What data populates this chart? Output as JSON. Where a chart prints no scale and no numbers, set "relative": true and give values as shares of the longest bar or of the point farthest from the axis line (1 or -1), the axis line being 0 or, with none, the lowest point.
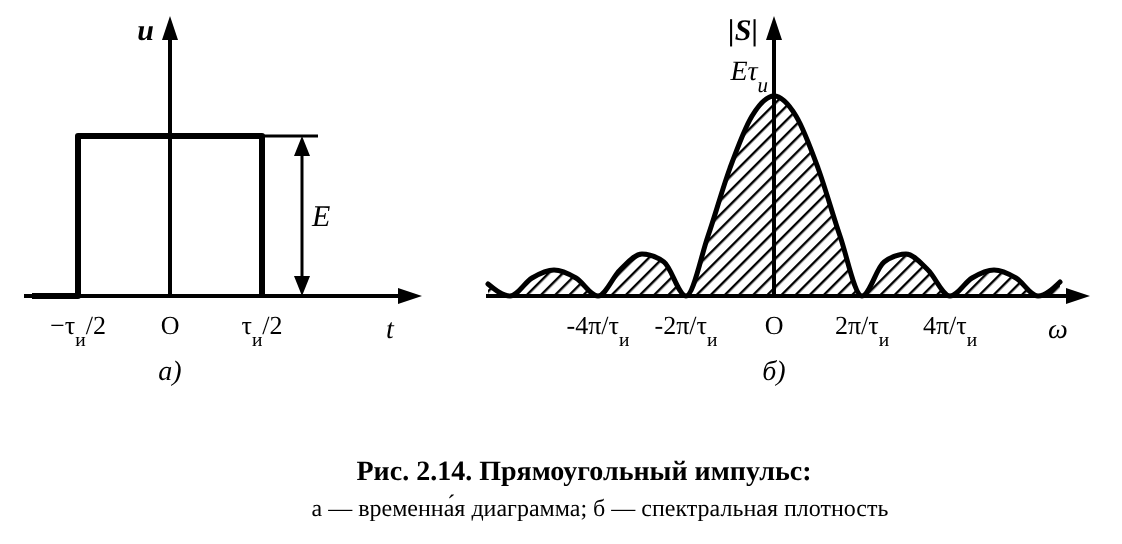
{
  "chart_data": [
    {
      "type": "step",
      "xlabel": "t",
      "ylabel": "u",
      "relative": true,
      "categories": [
        null,
        "−τ$_{и}$/2",
        null,
        "O",
        null,
        "τ$_{и}$/2",
        null,
        null,
        null
      ],
      "series": [
        {
          "color": "#000000",
          "values": [
            0,
            1,
            1,
            1,
            1,
            0,
            null,
            null,
            null
          ]
        }
      ],
      "annotations": [
        {
          "text": "E",
          "x": "τ$_{и}$/2",
          "y": 1
        },
        "а)"
      ]
    },
    {
      "type": "area",
      "xlabel": "ω",
      "ylabel": "|S|",
      "relative": true,
      "categories": [
        null,
        null,
        null,
        null,
        null,
        "-4π/τ$_{и}$",
        null,
        null,
        null,
        "-2π/τ$_{и}$",
        null,
        null,
        null,
        "O",
        null,
        null,
        null,
        "2π/τ$_{и}$",
        null,
        null,
        null,
        "4π/τ$_{и}$",
        null,
        null,
        null,
        null,
        null
      ],
      "series": [
        {
          "color": "#000000",
          "values": [
            0.06,
            0,
            0.09,
            0.13,
            0.09,
            0,
            0.13,
            0.21,
            0.17,
            0,
            0.3,
            0.64,
            0.9,
            1,
            0.9,
            0.64,
            0.3,
            0,
            0.17,
            0.21,
            0.13,
            0,
            0.09,
            0.13,
            0.09,
            0,
            0.07
          ]
        }
      ],
      "annotations": [
        {
          "text": "Eτ$_{и}$",
          "x": "O",
          "y": 1
        },
        "б)"
      ]
    },
    {
      "type": "other",
      "title": "Рис. 2.14. Прямоугольный импульс:",
      "subtitle": "а — временна́я диаграмма; б — спектральная плотность"
    }
  ]
}
